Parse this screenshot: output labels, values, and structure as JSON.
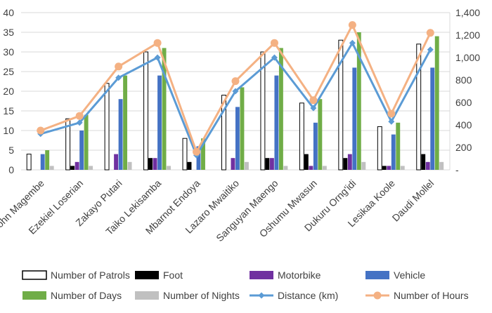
{
  "chart_data": {
    "type": "bar+line combo",
    "categories": [
      "John Magembe",
      "Ezekiel Loserian",
      "Zakayo Putari",
      "Taiko Lekisamba",
      "Mbarnot Endoya",
      "Lazaro Mwaitiko",
      "Sanguyan Maengo",
      "Oshumu Mwasun",
      "Dukuru Orng'idi",
      "Lesikaa Koole",
      "Daudi Mollel"
    ],
    "category_labels_shown": [
      "ohn Magembe",
      "Ezekiel Loserian",
      "Zakayo Putari",
      "Taiko Lekisamba",
      "Mbarnot Endoya",
      "Lazaro Mwaitiko",
      "Sanguyan Maengo",
      "Oshumu Mwasun",
      "Dukuru Orng'idi",
      "Lesikaa Koole",
      "Daudi Mollel"
    ],
    "left_axis": {
      "ylim": [
        0,
        40
      ],
      "ticks": [
        "0",
        "5",
        "10",
        "15",
        "20",
        "25",
        "30",
        "35",
        "40"
      ]
    },
    "right_axis": {
      "ylim": [
        0,
        1400
      ],
      "ticks": [
        "-",
        "200",
        "400",
        "600",
        "800",
        "1,000",
        "1,200",
        "1,400"
      ]
    },
    "grid": true,
    "legend_position": "bottom",
    "bar_series": [
      {
        "name": "Number of Patrols",
        "color": "#ffffff",
        "stroke": "#000000",
        "values": [
          4,
          13,
          22,
          30,
          8,
          19,
          30,
          17,
          33,
          11,
          32
        ]
      },
      {
        "name": "Foot",
        "color": "#000000",
        "values": [
          0,
          1,
          0,
          3,
          2,
          0,
          3,
          4,
          3,
          1,
          4
        ]
      },
      {
        "name": "Motorbike",
        "color": "#7030a0",
        "values": [
          0,
          2,
          4,
          3,
          0,
          3,
          3,
          1,
          4,
          1,
          2
        ]
      },
      {
        "name": "Vehicle",
        "color": "#4472c4",
        "values": [
          4,
          10,
          18,
          24,
          6,
          16,
          24,
          12,
          26,
          9,
          26
        ]
      },
      {
        "name": "Number of Days",
        "color": "#70ad47",
        "values": [
          5,
          14,
          24,
          31,
          8,
          21,
          31,
          18,
          35,
          12,
          34
        ]
      },
      {
        "name": "Number of Nights",
        "color": "#c0c0c0",
        "values": [
          1,
          1,
          2,
          1,
          0,
          2,
          1,
          1,
          2,
          1,
          2
        ]
      }
    ],
    "line_series": [
      {
        "name": "Distance (km)",
        "color": "#5b9bd5",
        "marker": "diamond",
        "values": [
          320,
          420,
          820,
          1000,
          130,
          700,
          1000,
          550,
          1130,
          430,
          1070
        ]
      },
      {
        "name": "Number of Hours",
        "color": "#f4b183",
        "marker": "circle",
        "values": [
          350,
          480,
          920,
          1130,
          160,
          790,
          1130,
          620,
          1290,
          500,
          1220
        ]
      }
    ]
  }
}
